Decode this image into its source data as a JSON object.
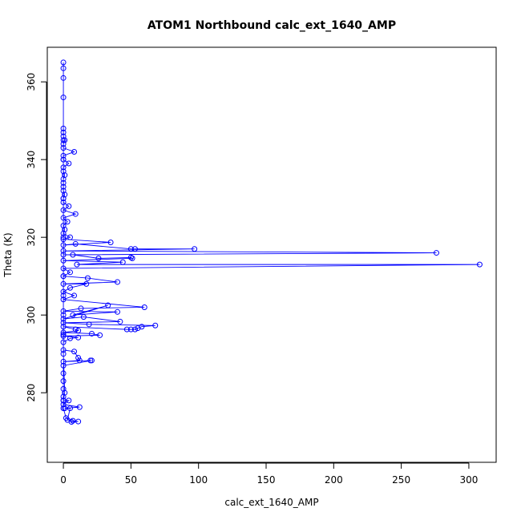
{
  "chart_data": {
    "type": "line",
    "title": "ATOM1 Northbound calc_ext_1640_AMP",
    "x_label": "calc_ext_1640_AMP",
    "y_label": "Theta (K)",
    "color": "#0000ff",
    "markers": true,
    "xlim": [
      -11.9,
      320.2
    ],
    "ylim": [
      262.1,
      368.9
    ],
    "xticks": [
      0,
      50,
      100,
      150,
      200,
      250,
      300
    ],
    "yticks": [
      280,
      300,
      320,
      340,
      360
    ],
    "x": [
      0,
      0,
      0,
      0,
      0,
      0,
      0,
      1,
      0,
      0,
      8,
      0,
      0,
      4,
      0,
      0,
      1,
      0,
      0,
      0,
      0,
      1,
      0,
      0,
      4,
      0,
      9,
      0,
      3,
      0,
      1,
      0,
      5,
      0,
      35,
      0,
      9,
      50,
      53,
      97,
      0,
      276,
      0,
      7,
      26,
      50,
      51,
      0,
      44,
      10,
      308,
      0,
      5,
      0,
      18,
      40,
      0,
      17,
      5,
      0,
      8,
      0,
      60,
      13,
      0,
      40,
      7,
      33,
      0,
      15,
      42,
      0,
      19,
      68,
      58,
      55,
      53,
      50,
      47,
      0,
      9,
      11,
      0,
      21,
      27,
      0,
      11,
      5,
      0,
      0,
      8,
      11,
      12,
      0,
      20,
      21,
      0,
      0,
      0,
      0,
      0,
      0,
      4,
      0,
      12,
      1,
      5,
      3,
      7,
      11,
      6,
      2,
      0,
      0,
      1,
      0,
      0,
      0,
      0,
      0,
      0,
      0,
      0,
      0
    ],
    "values": [
      365,
      363.5,
      361,
      356,
      348,
      347,
      346,
      345,
      344,
      343,
      342,
      341,
      340,
      339,
      338,
      337,
      336,
      335,
      334,
      333,
      332,
      331,
      330,
      329,
      328,
      327,
      326,
      325,
      324,
      323,
      322,
      321,
      320,
      319.5,
      318.7,
      318,
      318.3,
      317,
      317,
      317,
      316.5,
      316,
      315.5,
      315.5,
      314.6,
      314.8,
      314.6,
      314,
      313.6,
      313,
      313,
      312,
      311,
      310,
      309.5,
      308.5,
      308,
      308,
      307,
      306,
      305,
      304,
      302,
      301.7,
      301,
      300.8,
      300,
      302.5,
      299,
      299.5,
      298.3,
      298,
      297.6,
      297.3,
      297,
      296.6,
      296.3,
      296.3,
      296.3,
      297,
      296.3,
      296,
      295.5,
      295.2,
      294.8,
      294.6,
      294.2,
      294,
      293,
      291,
      290.6,
      289,
      288.3,
      288,
      288.3,
      288.3,
      287,
      285,
      283,
      281,
      279,
      278,
      278,
      277,
      276.3,
      276,
      276,
      273,
      272.8,
      272.6,
      272.5,
      273.5,
      276,
      278,
      280,
      290,
      295,
      300,
      305,
      310,
      320,
      330,
      340,
      345
    ]
  }
}
